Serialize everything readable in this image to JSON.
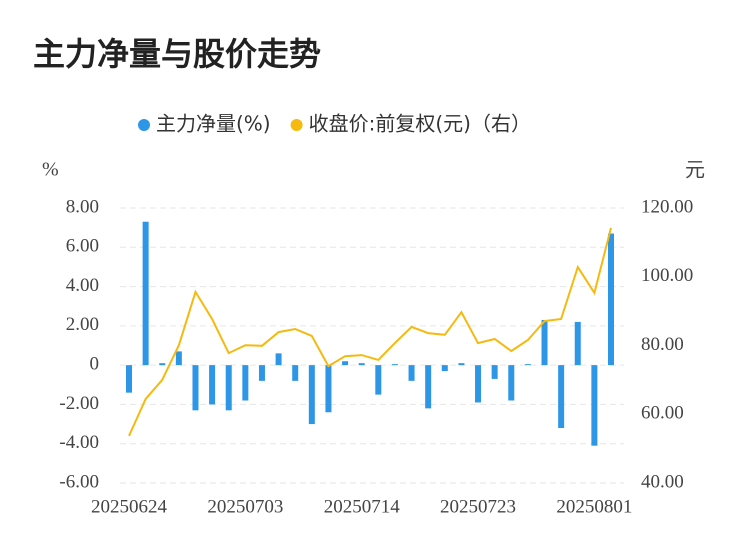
{
  "chart_data": {
    "type": "bar_line",
    "title": "主力净量与股价走势",
    "y_label": "%",
    "y2_label": "元",
    "categories": [
      "20250624",
      null,
      null,
      null,
      null,
      null,
      null,
      "20250703",
      null,
      null,
      null,
      null,
      null,
      null,
      "20250714",
      null,
      null,
      null,
      null,
      null,
      null,
      "20250723",
      null,
      null,
      null,
      null,
      null,
      null,
      "20250801",
      null
    ],
    "series": [
      {
        "name": "主力净量(%)",
        "color": "#2e96e6",
        "type": "bar",
        "values": [
          -1.4,
          7.3,
          0.1,
          0.7,
          -2.3,
          -2.0,
          -2.3,
          -1.8,
          -0.8,
          0.6,
          -0.8,
          -3.0,
          -2.4,
          0.2,
          0.1,
          -1.5,
          0.05,
          -0.8,
          -2.2,
          -0.3,
          0.1,
          -1.9,
          -0.7,
          -1.8,
          0.05,
          2.3,
          -3.2,
          2.2,
          -4.1,
          6.7
        ]
      },
      {
        "name": "收盘价:前复权(元)（右）",
        "color": "#f5b90f",
        "type": "line",
        "axis": "y2",
        "values": [
          53.7,
          64.4,
          70.0,
          80.1,
          95.6,
          87.7,
          77.8,
          80.1,
          79.9,
          83.9,
          84.8,
          82.8,
          74.0,
          76.9,
          77.2,
          75.8,
          80.7,
          85.4,
          83.6,
          83.1,
          89.7,
          80.7,
          81.9,
          78.4,
          81.6,
          87.1,
          87.7,
          102.8,
          95.3,
          114.2
        ]
      }
    ],
    "ylim": [
      -6,
      8
    ],
    "yticks": [
      {
        "value": -6,
        "label": "-6.00"
      },
      {
        "value": -4,
        "label": "-4.00"
      },
      {
        "value": -2,
        "label": "-2.00"
      },
      0,
      {
        "value": 2,
        "label": "2.00"
      },
      {
        "value": 4,
        "label": "4.00"
      },
      {
        "value": 6,
        "label": "6.00"
      },
      {
        "value": 8,
        "label": "8.00"
      }
    ],
    "y2lim": [
      40,
      120
    ],
    "y2ticks": [
      {
        "value": 40,
        "label": "40.00"
      },
      {
        "value": 60,
        "label": "60.00"
      },
      {
        "value": 80,
        "label": "80.00"
      },
      {
        "value": 100,
        "label": "100.00"
      },
      {
        "value": 120,
        "label": "120.00"
      }
    ],
    "grid": true,
    "legend": "top"
  }
}
